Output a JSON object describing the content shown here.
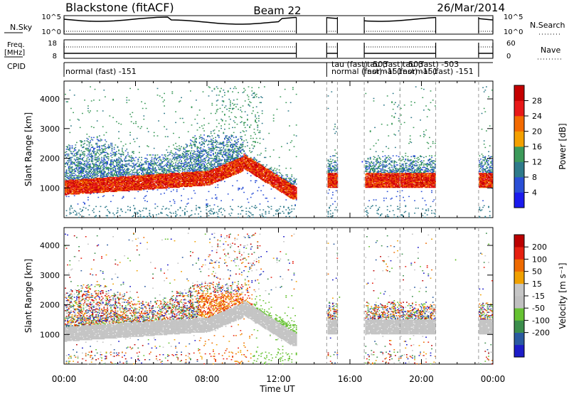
{
  "header": {
    "station": "Blackstone (fitACF)",
    "beam": "Beam 22",
    "date": "26/Mar/2014"
  },
  "summary": {
    "nsky_label": "N.Sky",
    "nsky_ticks": [
      "10^5",
      "10^0"
    ],
    "nsearch_label": "N.Search",
    "freq_label_line1": "Freq.",
    "freq_label_line2": "[MHz]",
    "freq_ticks": [
      "18",
      "8"
    ],
    "nave_label": "Nave",
    "nave_ticks": [
      "60",
      "0"
    ],
    "cpid_label": "CPID",
    "cpid_entries": [
      "normal (fast) -151",
      "tau (fast) -503",
      "normal (fast) -151",
      "tau (fast) -503",
      "normal (fast) -151",
      "tau (fast) -503",
      "normal (fast) -151"
    ]
  },
  "colors": {
    "power_scale": [
      "#1a1aee",
      "#2a4fd6",
      "#2e7a8a",
      "#3c9a5a",
      "#f4a000",
      "#f36a00",
      "#e81818",
      "#c40000"
    ],
    "velocity_scale": [
      "#1c1cc8",
      "#2a5aa0",
      "#3c8e4c",
      "#66c232",
      "#c0c0c0",
      "#c6c6c6",
      "#f0a000",
      "#ee6a00",
      "#e62010",
      "#bb0000"
    ]
  },
  "chart_data": [
    {
      "type": "heatmap",
      "title": "",
      "xlabel": "",
      "ylabel": "Slant Range [km]",
      "xlim": [
        "00:00",
        "24:00"
      ],
      "ylim": [
        0,
        4600
      ],
      "y_ticks": [
        "1000",
        "2000",
        "3000",
        "4000"
      ],
      "colorbar_label": "Power [dB]",
      "colorbar_ticks": [
        "4",
        "8",
        "12",
        "16",
        "20",
        "24",
        "28"
      ],
      "data_gaps_UT": [
        [
          13.0,
          14.7
        ],
        [
          15.3,
          16.8
        ],
        [
          20.8,
          23.2
        ]
      ],
      "echo_bands": [
        {
          "from": 0.0,
          "to": 13.0,
          "main_range_km": [
            900,
            1500
          ],
          "scatter_up_to_km": 2600
        },
        {
          "from": 14.7,
          "to": 15.3,
          "main_range_km": [
            1000,
            1500
          ]
        },
        {
          "from": 16.8,
          "to": 20.8,
          "main_range_km": [
            1000,
            1600
          ],
          "scatter_up_to_km": 2100
        },
        {
          "from": 23.2,
          "to": 24.0,
          "main_range_km": [
            1000,
            1600
          ],
          "scatter_up_to_km": 2400
        }
      ]
    },
    {
      "type": "heatmap",
      "title": "",
      "xlabel": "Time UT",
      "ylabel": "Slant Range [km]",
      "xlim": [
        "00:00",
        "24:00"
      ],
      "ylim": [
        0,
        4600
      ],
      "x_ticks": [
        "00:00",
        "04:00",
        "08:00",
        "12:00",
        "16:00",
        "20:00",
        "00:00"
      ],
      "y_ticks": [
        "1000",
        "2000",
        "3000",
        "4000"
      ],
      "colorbar_label": "Velocity [m s⁻¹]",
      "colorbar_ticks": [
        "200",
        "100",
        "50",
        "15",
        "-15",
        "-50",
        "-100",
        "-200"
      ]
    }
  ]
}
